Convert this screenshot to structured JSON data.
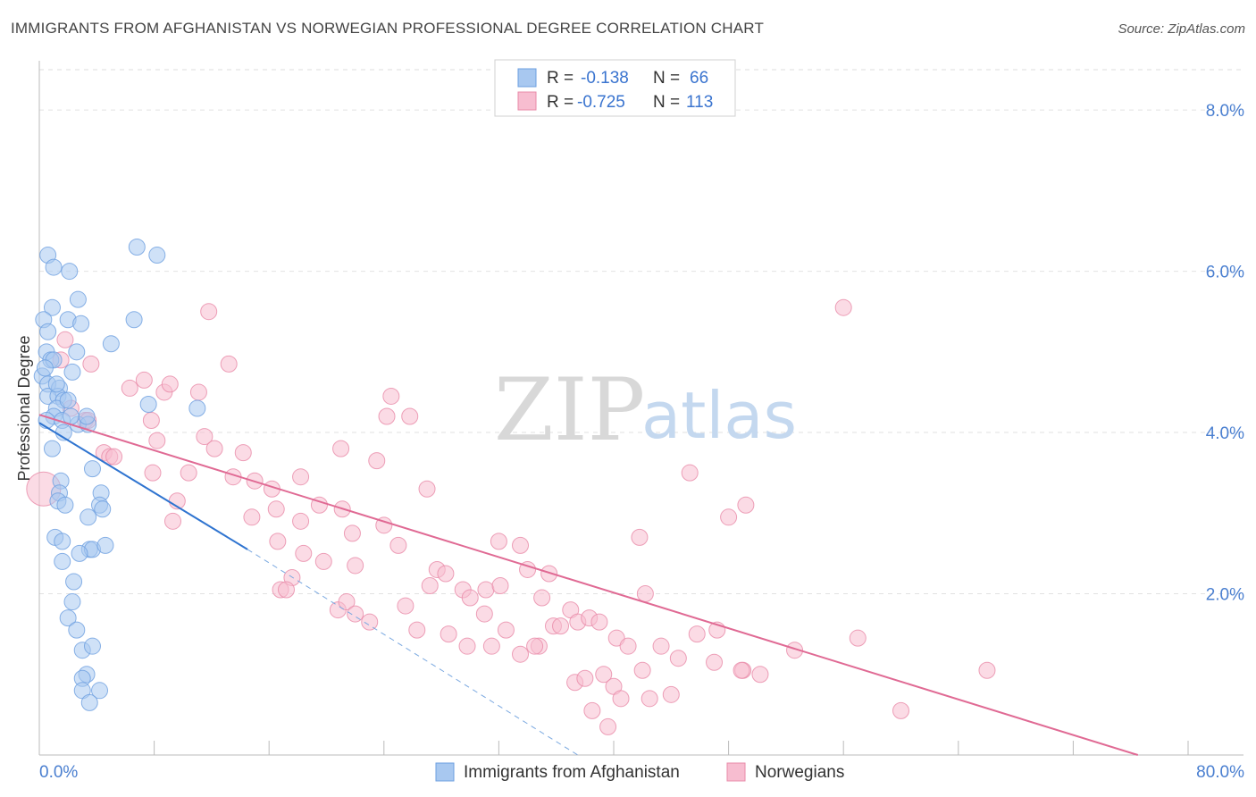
{
  "title": "IMMIGRANTS FROM AFGHANISTAN VS NORWEGIAN PROFESSIONAL DEGREE CORRELATION CHART",
  "source": "Source: ZipAtlas.com",
  "watermark": {
    "zip": "ZIP",
    "atlas": "atlas"
  },
  "legend_top": [
    {
      "r_label": "R =",
      "r_value": "-0.138",
      "n_label": "N =",
      "n_value": "66",
      "color": "#a8c8f0",
      "stroke": "#6d9fe0"
    },
    {
      "r_label": "R =",
      "r_value": "-0.725",
      "n_label": "N =",
      "n_value": "113",
      "color": "#f7bdd0",
      "stroke": "#e88aa8"
    }
  ],
  "chart_data": {
    "type": "scatter",
    "title": "IMMIGRANTS FROM AFGHANISTAN VS NORWEGIAN PROFESSIONAL DEGREE CORRELATION CHART",
    "xlabel": "",
    "ylabel": "Professional Degree",
    "xlim": [
      0,
      80
    ],
    "ylim": [
      0,
      8.5
    ],
    "x_tick_labels": [
      "0.0%",
      "80.0%"
    ],
    "y_ticks": [
      2,
      4,
      6,
      8
    ],
    "y_tick_labels": [
      "2.0%",
      "4.0%",
      "6.0%",
      "8.0%"
    ],
    "grid": true,
    "legend_position": "top-center",
    "series": [
      {
        "name": "Immigrants from Afghanistan",
        "color": "#a8c8f0",
        "stroke": "#6d9fe0",
        "points": [
          [
            0.6,
            6.2
          ],
          [
            1.0,
            6.05
          ],
          [
            2.1,
            6.0
          ],
          [
            0.9,
            5.55
          ],
          [
            2.7,
            5.65
          ],
          [
            0.3,
            5.4
          ],
          [
            2.0,
            5.4
          ],
          [
            2.9,
            5.35
          ],
          [
            0.6,
            5.25
          ],
          [
            0.5,
            5.0
          ],
          [
            2.6,
            5.0
          ],
          [
            0.8,
            4.9
          ],
          [
            1.0,
            4.9
          ],
          [
            2.3,
            4.75
          ],
          [
            0.2,
            4.7
          ],
          [
            0.6,
            4.6
          ],
          [
            1.4,
            4.55
          ],
          [
            0.6,
            4.45
          ],
          [
            1.3,
            4.45
          ],
          [
            1.7,
            4.4
          ],
          [
            1.2,
            4.3
          ],
          [
            1.0,
            4.2
          ],
          [
            0.5,
            4.15
          ],
          [
            1.6,
            4.15
          ],
          [
            2.7,
            4.1
          ],
          [
            3.4,
            4.1
          ],
          [
            1.7,
            4.0
          ],
          [
            3.7,
            3.55
          ],
          [
            1.5,
            3.4
          ],
          [
            1.4,
            3.25
          ],
          [
            4.3,
            3.25
          ],
          [
            1.3,
            3.15
          ],
          [
            4.2,
            3.1
          ],
          [
            4.4,
            3.05
          ],
          [
            3.4,
            2.95
          ],
          [
            1.1,
            2.7
          ],
          [
            1.6,
            2.65
          ],
          [
            3.5,
            2.55
          ],
          [
            3.7,
            2.55
          ],
          [
            2.8,
            2.5
          ],
          [
            1.6,
            2.4
          ],
          [
            2.4,
            2.15
          ],
          [
            2.3,
            1.9
          ],
          [
            2.0,
            1.7
          ],
          [
            2.6,
            1.55
          ],
          [
            3.0,
            1.3
          ],
          [
            3.7,
            1.35
          ],
          [
            3.3,
            1.0
          ],
          [
            3.0,
            0.95
          ],
          [
            4.2,
            0.8
          ],
          [
            3.0,
            0.8
          ],
          [
            3.5,
            0.65
          ],
          [
            6.8,
            6.3
          ],
          [
            8.2,
            6.2
          ],
          [
            6.6,
            5.4
          ],
          [
            5.0,
            5.1
          ],
          [
            7.6,
            4.35
          ],
          [
            11.0,
            4.3
          ],
          [
            3.3,
            4.2
          ],
          [
            2.0,
            4.4
          ],
          [
            1.2,
            4.6
          ],
          [
            0.4,
            4.8
          ],
          [
            1.8,
            3.1
          ],
          [
            0.9,
            3.8
          ],
          [
            2.2,
            4.2
          ],
          [
            4.6,
            2.6
          ]
        ]
      },
      {
        "name": "Norwegians",
        "color": "#f7bdd0",
        "stroke": "#e88aa8",
        "points": [
          [
            0.3,
            3.3
          ],
          [
            1.8,
            5.15
          ],
          [
            1.5,
            4.9
          ],
          [
            3.6,
            4.85
          ],
          [
            3.2,
            4.15
          ],
          [
            2.2,
            4.3
          ],
          [
            3.4,
            4.15
          ],
          [
            7.8,
            4.15
          ],
          [
            6.3,
            4.55
          ],
          [
            7.3,
            4.65
          ],
          [
            8.7,
            4.5
          ],
          [
            9.1,
            4.6
          ],
          [
            11.1,
            4.5
          ],
          [
            11.5,
            3.95
          ],
          [
            12.2,
            3.8
          ],
          [
            8.2,
            3.9
          ],
          [
            4.5,
            3.75
          ],
          [
            4.9,
            3.7
          ],
          [
            7.9,
            3.5
          ],
          [
            10.4,
            3.5
          ],
          [
            14.2,
            3.75
          ],
          [
            13.5,
            3.45
          ],
          [
            15.0,
            3.4
          ],
          [
            16.2,
            3.3
          ],
          [
            9.6,
            3.15
          ],
          [
            9.3,
            2.9
          ],
          [
            14.8,
            2.95
          ],
          [
            16.5,
            3.05
          ],
          [
            18.2,
            3.45
          ],
          [
            19.5,
            3.1
          ],
          [
            21.1,
            3.05
          ],
          [
            23.5,
            3.65
          ],
          [
            21.0,
            3.8
          ],
          [
            24.5,
            4.45
          ],
          [
            24.2,
            4.2
          ],
          [
            25.8,
            4.2
          ],
          [
            27.0,
            3.3
          ],
          [
            21.8,
            2.75
          ],
          [
            18.2,
            2.9
          ],
          [
            16.6,
            2.65
          ],
          [
            18.4,
            2.5
          ],
          [
            19.8,
            2.4
          ],
          [
            22.0,
            2.35
          ],
          [
            24.0,
            2.85
          ],
          [
            25.0,
            2.6
          ],
          [
            16.8,
            2.05
          ],
          [
            17.6,
            2.2
          ],
          [
            17.2,
            2.05
          ],
          [
            20.8,
            1.8
          ],
          [
            21.4,
            1.9
          ],
          [
            22.0,
            1.75
          ],
          [
            23.0,
            1.65
          ],
          [
            25.5,
            1.85
          ],
          [
            26.3,
            1.55
          ],
          [
            27.7,
            2.3
          ],
          [
            27.2,
            2.1
          ],
          [
            28.3,
            2.25
          ],
          [
            28.5,
            1.5
          ],
          [
            29.5,
            2.05
          ],
          [
            30.0,
            1.95
          ],
          [
            31.1,
            2.05
          ],
          [
            32.1,
            2.1
          ],
          [
            32.0,
            2.65
          ],
          [
            33.5,
            2.6
          ],
          [
            31.0,
            1.75
          ],
          [
            29.8,
            1.35
          ],
          [
            31.5,
            1.35
          ],
          [
            32.5,
            1.55
          ],
          [
            33.5,
            1.25
          ],
          [
            34.0,
            2.3
          ],
          [
            35.0,
            1.95
          ],
          [
            34.8,
            1.35
          ],
          [
            35.5,
            2.25
          ],
          [
            35.8,
            1.6
          ],
          [
            36.3,
            1.6
          ],
          [
            37.0,
            1.8
          ],
          [
            37.5,
            1.65
          ],
          [
            38.3,
            1.7
          ],
          [
            39.0,
            1.65
          ],
          [
            34.5,
            1.35
          ],
          [
            37.3,
            0.9
          ],
          [
            38.0,
            0.95
          ],
          [
            38.5,
            0.55
          ],
          [
            39.3,
            1.0
          ],
          [
            40.0,
            0.85
          ],
          [
            40.5,
            0.7
          ],
          [
            39.6,
            0.35
          ],
          [
            40.2,
            1.45
          ],
          [
            41.0,
            1.35
          ],
          [
            42.0,
            1.05
          ],
          [
            42.2,
            2.0
          ],
          [
            41.8,
            2.7
          ],
          [
            42.5,
            0.7
          ],
          [
            43.3,
            1.35
          ],
          [
            44.0,
            0.75
          ],
          [
            44.5,
            1.2
          ],
          [
            45.8,
            1.5
          ],
          [
            47.0,
            1.15
          ],
          [
            47.2,
            1.55
          ],
          [
            48.0,
            2.95
          ],
          [
            49.2,
            3.1
          ],
          [
            49.0,
            1.05
          ],
          [
            50.2,
            1.0
          ],
          [
            48.9,
            1.05
          ],
          [
            52.6,
            1.3
          ],
          [
            57.0,
            1.45
          ],
          [
            60.0,
            0.55
          ],
          [
            66.0,
            1.05
          ],
          [
            45.3,
            3.5
          ],
          [
            56.0,
            5.55
          ],
          [
            11.8,
            5.5
          ],
          [
            13.2,
            4.85
          ],
          [
            5.2,
            3.7
          ]
        ]
      }
    ],
    "trend_lines": [
      {
        "series": "Immigrants from Afghanistan",
        "from": [
          0,
          4.12
        ],
        "to": [
          14.5,
          2.55
        ],
        "dashed_to": [
          37.5,
          0.0
        ]
      },
      {
        "series": "Norwegians",
        "from": [
          0,
          4.22
        ],
        "to": [
          76.5,
          0.0
        ]
      }
    ]
  },
  "bottom_legend": [
    {
      "label": "Immigrants from Afghanistan",
      "color": "#a8c8f0",
      "stroke": "#6d9fe0"
    },
    {
      "label": "Norwegians",
      "color": "#f7bdd0",
      "stroke": "#e88aa8"
    }
  ]
}
